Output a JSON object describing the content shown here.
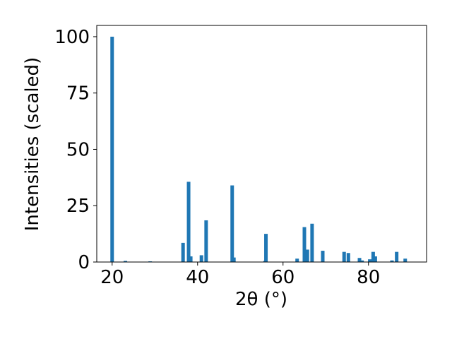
{
  "chart_data": {
    "type": "bar",
    "x_label": "2θ (°)",
    "y_label": "Intensities (scaled)",
    "x": [
      20.0,
      23.1,
      28.9,
      36.6,
      37.9,
      38.4,
      40.9,
      42.0,
      48.1,
      48.5,
      55.8,
      56.0,
      63.3,
      65.0,
      65.7,
      66.8,
      69.3,
      74.3,
      75.3,
      77.9,
      78.5,
      80.3,
      81.1,
      81.6,
      85.5,
      86.6,
      88.6
    ],
    "values": [
      100,
      0.5,
      0.3,
      8.5,
      35.6,
      2.5,
      3,
      18.5,
      34,
      2,
      0.5,
      12.5,
      1.5,
      15.5,
      5.5,
      17,
      5,
      4.5,
      4,
      1.8,
      0.7,
      1.2,
      4.5,
      2.5,
      0.7,
      4.5,
      1.5
    ],
    "color": "#1f77b4",
    "xlim": [
      16.4,
      93.6
    ],
    "ylim": [
      0,
      105
    ],
    "xticks": [
      20,
      40,
      60,
      80
    ],
    "yticks": [
      0,
      25,
      50,
      75,
      100
    ],
    "grid": false
  }
}
